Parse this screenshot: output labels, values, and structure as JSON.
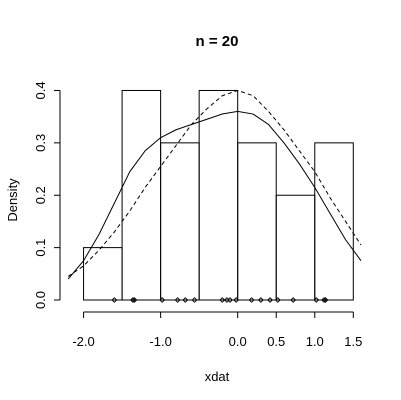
{
  "chart_data": {
    "type": "histogram",
    "title": "n = 20",
    "xlabel": "xdat",
    "ylabel": "Density",
    "xlim": [
      -2.15,
      1.6
    ],
    "ylim": [
      0,
      0.42
    ],
    "x_ticks": [
      -2.0,
      -1.0,
      0.0,
      0.5,
      1.0,
      1.5
    ],
    "x_tick_labels": [
      "-2.0",
      "-1.0",
      "0.0",
      "0.5",
      "1.0",
      "1.5"
    ],
    "y_ticks": [
      0.0,
      0.1,
      0.2,
      0.3,
      0.4
    ],
    "y_tick_labels": [
      "0.0",
      "0.1",
      "0.2",
      "0.3",
      "0.4"
    ],
    "bins": [
      {
        "x0": -2.0,
        "x1": -1.5,
        "density": 0.1
      },
      {
        "x0": -1.5,
        "x1": -1.0,
        "density": 0.4
      },
      {
        "x0": -1.0,
        "x1": -0.5,
        "density": 0.3
      },
      {
        "x0": -0.5,
        "x1": 0.0,
        "density": 0.4
      },
      {
        "x0": 0.0,
        "x1": 0.5,
        "density": 0.3
      },
      {
        "x0": 0.5,
        "x1": 1.0,
        "density": 0.2
      },
      {
        "x0": 1.0,
        "x1": 1.5,
        "density": 0.3
      }
    ],
    "rug_points": [
      -1.6,
      -1.36,
      -1.34,
      -0.98,
      -0.78,
      -0.68,
      -0.56,
      -0.2,
      -0.14,
      -0.1,
      -0.02,
      0.18,
      0.3,
      0.42,
      0.52,
      0.72,
      1.02,
      1.12,
      1.14
    ],
    "series": [
      {
        "style": "solid",
        "x": [
          -2.2,
          -2.0,
          -1.8,
          -1.6,
          -1.4,
          -1.2,
          -1.0,
          -0.8,
          -0.6,
          -0.4,
          -0.2,
          0.0,
          0.2,
          0.4,
          0.6,
          0.8,
          1.0,
          1.2,
          1.4,
          1.6
        ],
        "y": [
          0.04,
          0.075,
          0.125,
          0.185,
          0.245,
          0.285,
          0.31,
          0.325,
          0.335,
          0.345,
          0.355,
          0.36,
          0.355,
          0.335,
          0.3,
          0.26,
          0.215,
          0.165,
          0.115,
          0.075
        ]
      },
      {
        "style": "dashed",
        "x": [
          -2.2,
          -2.0,
          -1.8,
          -1.6,
          -1.4,
          -1.2,
          -1.0,
          -0.8,
          -0.6,
          -0.4,
          -0.2,
          0.0,
          0.2,
          0.4,
          0.6,
          0.8,
          1.0,
          1.2,
          1.4,
          1.6
        ],
        "y": [
          0.045,
          0.065,
          0.095,
          0.13,
          0.17,
          0.215,
          0.255,
          0.295,
          0.335,
          0.365,
          0.39,
          0.4,
          0.39,
          0.36,
          0.325,
          0.285,
          0.245,
          0.195,
          0.15,
          0.105
        ]
      }
    ]
  }
}
